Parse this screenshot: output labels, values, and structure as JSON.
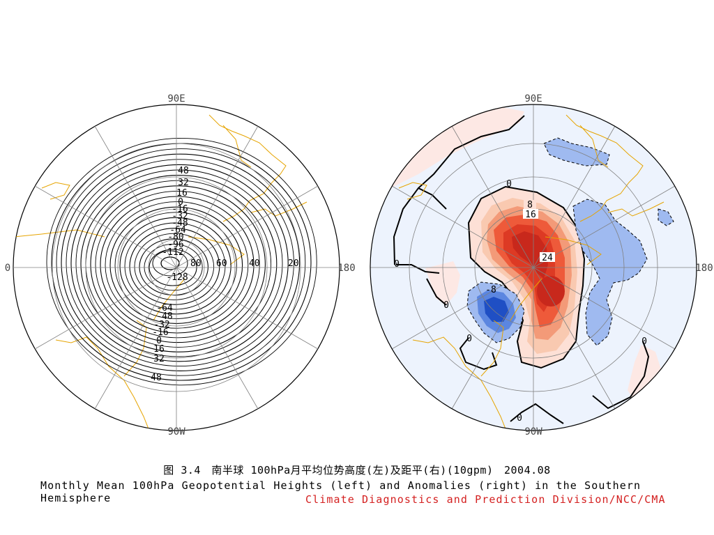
{
  "caption": {
    "chinese": "图 3.4　南半球 100hPa月平均位势高度(左)及距平(右)(10gpm)　2004.08",
    "english": "Monthly Mean 100hPa Geopotential Heights (left) and Anomalies (right) in the Southern Hemisphere",
    "organization": "Climate Diagnostics and Prediction Division/NCC/CMA"
  },
  "maps": [
    {
      "id": "heights",
      "projection": "south-polar-stereographic",
      "longitude_labels": {
        "top": "90E",
        "bottom": "90W",
        "left": "0",
        "right": "180"
      },
      "contour_labels": [
        "48",
        "32",
        "16",
        "0",
        "-16",
        "-32",
        "-48",
        "-64",
        "-80",
        "-96",
        "-112",
        "-128",
        "-64",
        "-48",
        "-32",
        "-16",
        "0",
        "16",
        "32",
        "48"
      ],
      "latitude_ring_labels": [
        "80",
        "60",
        "40",
        "20"
      ]
    },
    {
      "id": "anomalies",
      "projection": "south-polar-stereographic",
      "longitude_labels": {
        "top": "90E",
        "bottom": "90W",
        "left": "",
        "right": "180"
      },
      "contour_labels": [
        "8",
        "16",
        "24",
        "-8",
        "0",
        "0",
        "0",
        "0",
        "0",
        "0"
      ],
      "colors": {
        "positive_strong": "#c8281c",
        "positive_mid": "#ee5a3a",
        "positive_weak": "#f7c2a6",
        "positive_faint": "#fde8e4",
        "negative_strong": "#1f4fc4",
        "negative_mid": "#5b86e0",
        "negative_weak": "#9fbaf0",
        "negative_faint": "#edf3fd"
      }
    }
  ],
  "colors": {
    "coastline": "#e6a400",
    "grid": "#808080",
    "caption_org": "#d42020"
  }
}
